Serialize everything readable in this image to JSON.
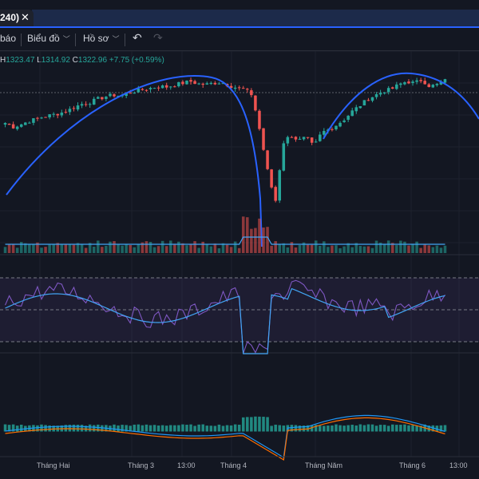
{
  "tab": {
    "label": "240)",
    "close_glyph": "✕"
  },
  "toolbar": {
    "alert_label": "báo",
    "chart_label": "Biểu đồ",
    "profile_label": "Hồ sơ",
    "undo_glyph": "↶",
    "redo_glyph": "↷"
  },
  "legend": {
    "h_key": "H",
    "h_val": "1323.47",
    "l_key": "L",
    "l_val": "1314.92",
    "c_key": "C",
    "c_val": "1322.96",
    "change": "+7.75 (+0.59%)"
  },
  "x_axis": {
    "ticks": [
      "Tháng Hai",
      "Tháng 3",
      "13:00",
      "Tháng 4",
      "Tháng Năm",
      "Tháng 6",
      "13:00"
    ]
  },
  "colors": {
    "up": "#26a69a",
    "down": "#ef5350",
    "curve": "#2962ff",
    "rsi": "#7e57c2",
    "rsi_ma": "#42a5f5",
    "macd": "#2196f3",
    "signal": "#ff6d00"
  },
  "chart_data": {
    "type": "line",
    "title": "",
    "series": [
      {
        "values": [
          1270,
          1265,
          1268,
          1272,
          1275,
          1278,
          1280,
          1282,
          1285,
          1290,
          1294,
          1296,
          1300,
          1303,
          1305,
          1304,
          1308,
          1310,
          1312,
          1314,
          1316,
          1315,
          1318,
          1320,
          1322,
          1319,
          1318,
          1320,
          1321,
          1317,
          1314,
          1312,
          1305,
          1260,
          1210,
          1170,
          1245,
          1255,
          1248,
          1252,
          1240,
          1258,
          1262,
          1268,
          1275,
          1285,
          1292,
          1300,
          1305,
          1310,
          1312,
          1318,
          1322,
          1320,
          1324,
          1316,
          1318,
          1323
        ]
      }
    ]
  }
}
